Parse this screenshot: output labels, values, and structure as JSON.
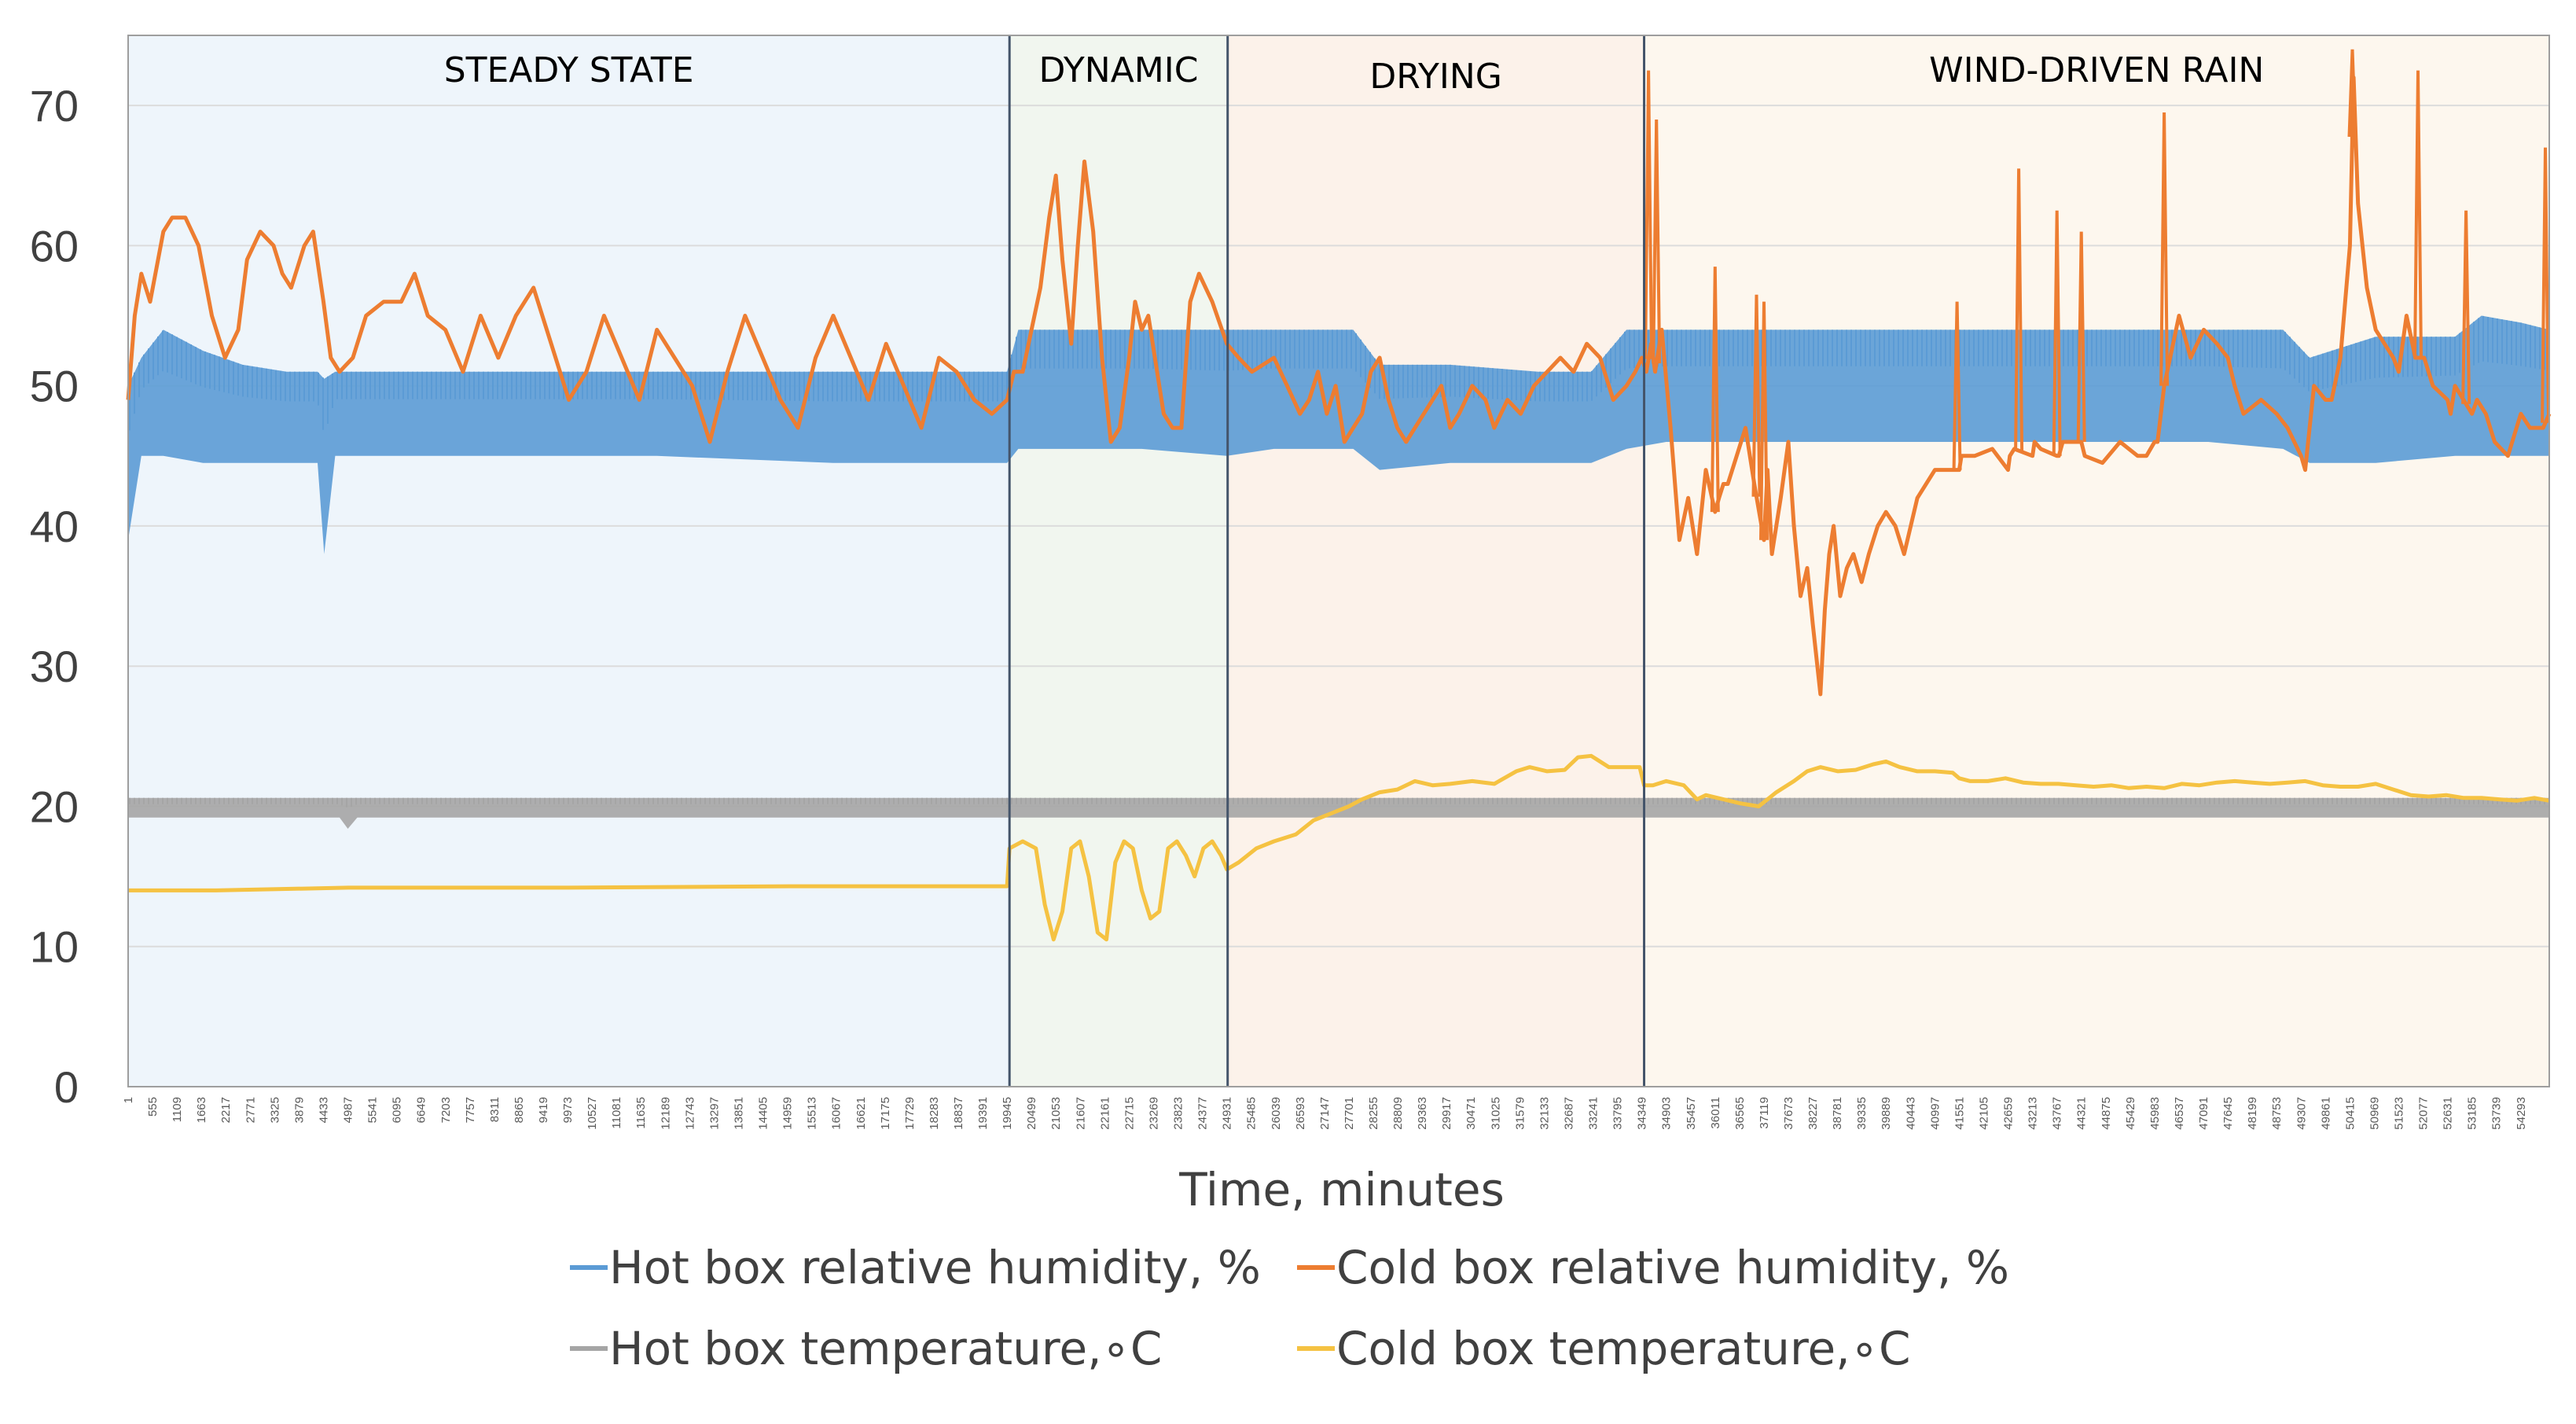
{
  "chart_data": {
    "type": "line",
    "title": "",
    "xlabel": "Time, minutes",
    "ylabel": "",
    "xlim": [
      1,
      54939
    ],
    "ylim": [
      0,
      75
    ],
    "y_ticks": [
      0,
      10,
      20,
      30,
      40,
      50,
      60,
      70
    ],
    "x_ticks": [
      1,
      555,
      1109,
      1663,
      2217,
      2771,
      3325,
      3879,
      4433,
      4987,
      5541,
      6095,
      6649,
      7203,
      7757,
      8311,
      8865,
      9419,
      9973,
      10527,
      11081,
      11635,
      12189,
      12743,
      13297,
      13851,
      14405,
      14959,
      15513,
      16067,
      16621,
      17175,
      17729,
      18283,
      18837,
      19391,
      19945,
      20499,
      21053,
      21607,
      22161,
      22715,
      23269,
      23823,
      24377,
      24931,
      25485,
      26039,
      26593,
      27147,
      27701,
      28255,
      28809,
      29363,
      29917,
      30471,
      31025,
      31579,
      32133,
      32687,
      33241,
      33795,
      34349,
      34903,
      35457,
      36011,
      36565,
      37119,
      37673,
      38227,
      38781,
      39335,
      39889,
      40443,
      40997,
      41551,
      42105,
      42659,
      43213,
      43767,
      44321,
      44875,
      45429,
      45983,
      46537,
      47091,
      47645,
      48199,
      48753,
      49307,
      49861,
      50415,
      50969,
      51523,
      52077,
      52631,
      53185,
      53739,
      54293
    ],
    "grid": "horizontal",
    "legend_position": "bottom",
    "phases": [
      {
        "label": "STEADY STATE",
        "start": 1,
        "end": 20000,
        "color": "#eef5fb"
      },
      {
        "label": "DYNAMIC",
        "start": 20000,
        "end": 24950,
        "color": "#f1f6ef"
      },
      {
        "label": "DRYING",
        "start": 24950,
        "end": 34400,
        "color": "#fcf2ea"
      },
      {
        "label": "WIND-DRIVEN RAIN",
        "start": 34400,
        "end": 54939,
        "color": "#fdf7ee"
      }
    ],
    "series": [
      {
        "name": "Hot box relative humidity, %",
        "color": "#5b9bd5",
        "band": true,
        "x": [
          1,
          300,
          800,
          1700,
          2600,
          3600,
          4300,
          4450,
          4700,
          5600,
          8000,
          12000,
          16000,
          19945,
          20200,
          23000,
          24931,
          26000,
          27800,
          28400,
          30000,
          32000,
          33200,
          34000,
          34903,
          40000,
          46000,
          47200,
          48900,
          49500,
          51000,
          52800,
          53400,
          54300,
          54939
        ],
        "low": [
          39,
          45,
          45,
          44.5,
          44.5,
          44.5,
          44.5,
          38,
          45,
          45,
          45,
          45,
          44.5,
          44.5,
          45.5,
          45.5,
          45,
          45.5,
          45.5,
          44,
          44.5,
          44.5,
          44.5,
          45.5,
          46,
          46,
          46,
          46,
          45.5,
          44.5,
          44.5,
          45,
          45,
          45,
          45
        ],
        "high": [
          50,
          52,
          54,
          52.5,
          51.5,
          51,
          51,
          50.5,
          51,
          51,
          51,
          51,
          51,
          51,
          54,
          54,
          54,
          54,
          54,
          51.5,
          51.5,
          51,
          51,
          54,
          54,
          54,
          54,
          54,
          54,
          52,
          53.5,
          53.5,
          55,
          54.5,
          54
        ]
      },
      {
        "name": "Cold box relative humidity, %",
        "color": "#ed7d31",
        "band": false,
        "x": [
          1,
          150,
          300,
          500,
          800,
          1000,
          1300,
          1600,
          1900,
          2200,
          2500,
          2700,
          3000,
          3300,
          3500,
          3700,
          4000,
          4200,
          4433,
          4600,
          4800,
          5100,
          5400,
          5800,
          6200,
          6500,
          6800,
          7200,
          7600,
          8000,
          8400,
          8800,
          9200,
          9600,
          10000,
          10400,
          10800,
          11200,
          11600,
          12000,
          12400,
          12800,
          13200,
          13600,
          14000,
          14400,
          14800,
          15200,
          15600,
          16000,
          16400,
          16800,
          17200,
          17600,
          18000,
          18400,
          18800,
          19200,
          19600,
          19945,
          20100,
          20300,
          20500,
          20700,
          20900,
          21053,
          21200,
          21400,
          21550,
          21700,
          21900,
          22100,
          22300,
          22500,
          22715,
          22850,
          23000,
          23150,
          23300,
          23500,
          23700,
          23900,
          24100,
          24300,
          24450,
          24600,
          24931,
          25200,
          25500,
          26000,
          26300,
          26593,
          26800,
          27000,
          27200,
          27400,
          27600,
          27800,
          28000,
          28200,
          28400,
          28600,
          28800,
          29000,
          29200,
          29400,
          29600,
          29800,
          30000,
          30200,
          30500,
          30800,
          31000,
          31300,
          31600,
          31900,
          32200,
          32500,
          32800,
          33100,
          33400,
          33700,
          34000,
          34200,
          34349,
          34450,
          34560,
          34650,
          34800,
          35000,
          35200,
          35400,
          35600,
          35800,
          36011,
          36100,
          36200,
          36300,
          36500,
          36700,
          36900,
          37119,
          37200,
          37300,
          37400,
          37500,
          37673,
          37800,
          37950,
          38100,
          38227,
          38400,
          38500,
          38600,
          38700,
          38850,
          39000,
          39150,
          39335,
          39500,
          39700,
          39889,
          40100,
          40300,
          40600,
          41000,
          41551,
          41600,
          41700,
          41900,
          42300,
          42659,
          42700,
          42800,
          43213,
          43260,
          43400,
          43767,
          43810,
          43900,
          44321,
          44400,
          44800,
          45200,
          45600,
          45800,
          45983,
          46050,
          46200,
          46537,
          46800,
          47100,
          47400,
          47645,
          47800,
          48000,
          48400,
          48753,
          49000,
          49307,
          49400,
          49600,
          49861,
          50000,
          50200,
          50415,
          50500,
          50600,
          50800,
          51000,
          51200,
          51400,
          51523,
          51700,
          51900,
          52100,
          52300,
          52631,
          52700,
          52800,
          53185,
          53300,
          53500,
          53700,
          54000,
          54293,
          54500,
          54800,
          54939
        ],
        "y": [
          49,
          55,
          58,
          56,
          61,
          62,
          62,
          60,
          55,
          52,
          54,
          59,
          61,
          60,
          58,
          57,
          60,
          61,
          56,
          52,
          51,
          52,
          55,
          56,
          56,
          58,
          55,
          54,
          51,
          55,
          52,
          55,
          57,
          53,
          49,
          51,
          55,
          52,
          49,
          54,
          52,
          50,
          46,
          51,
          55,
          52,
          49,
          47,
          52,
          55,
          52,
          49,
          53,
          50,
          47,
          52,
          51,
          49,
          48,
          49,
          51,
          51,
          54,
          57,
          62,
          65,
          59,
          53,
          60,
          66,
          61,
          52,
          46,
          47,
          52,
          56,
          54,
          55,
          52,
          48,
          47,
          47,
          56,
          58,
          57,
          56,
          53,
          52,
          51,
          52,
          50,
          48,
          49,
          51,
          48,
          50,
          46,
          47,
          48,
          51,
          52,
          49,
          47,
          46,
          47,
          48,
          49,
          50,
          47,
          48,
          50,
          49,
          47,
          49,
          48,
          50,
          51,
          52,
          51,
          53,
          52,
          49,
          50,
          51,
          52,
          51,
          53,
          51,
          54,
          47,
          39,
          42,
          38,
          44,
          41,
          42,
          43,
          43,
          45,
          47,
          43,
          39,
          44,
          38,
          40,
          42,
          46,
          40,
          35,
          37,
          33,
          28,
          34,
          38,
          40,
          35,
          37,
          38,
          36,
          38,
          40,
          41,
          40,
          38,
          42,
          44,
          44,
          45,
          45,
          45,
          45.5,
          44,
          45,
          45.5,
          45,
          46,
          45.5,
          45,
          45,
          46,
          46,
          45,
          44.5,
          46,
          45,
          45,
          46,
          46,
          50,
          55,
          52,
          54,
          53,
          52,
          50,
          48,
          49,
          48,
          47,
          45,
          44,
          50,
          49,
          49,
          52,
          60,
          72,
          63,
          57,
          54,
          53,
          52,
          51,
          55,
          52,
          52,
          50,
          49,
          48,
          50,
          48,
          49,
          48,
          46,
          45,
          48,
          47,
          47,
          48
        ],
        "spikes": [
          {
            "x": 34500,
            "y": 72.5
          },
          {
            "x": 34680,
            "y": 69
          },
          {
            "x": 36011,
            "y": 58.5
          },
          {
            "x": 36950,
            "y": 56.5
          },
          {
            "x": 37119,
            "y": 56
          },
          {
            "x": 41500,
            "y": 56
          },
          {
            "x": 42900,
            "y": 65.5
          },
          {
            "x": 43767,
            "y": 62.5
          },
          {
            "x": 44321,
            "y": 61
          },
          {
            "x": 46200,
            "y": 69.5
          },
          {
            "x": 50470,
            "y": 74
          },
          {
            "x": 51960,
            "y": 72.5
          },
          {
            "x": 53050,
            "y": 62.5
          },
          {
            "x": 54850,
            "y": 67
          }
        ]
      },
      {
        "name": "Hot box temperature,∘C",
        "color": "#a5a5a5",
        "band": true,
        "x": [
          1,
          4800,
          4987,
          5200,
          54939
        ],
        "low": [
          19.2,
          19.2,
          18.4,
          19.2,
          19.2
        ],
        "high": [
          20.6,
          20.6,
          20.6,
          20.6,
          20.6
        ]
      },
      {
        "name": "Cold box temperature,∘C",
        "color": "#f5c242",
        "band": false,
        "x": [
          1,
          2000,
          5000,
          10000,
          15000,
          19945,
          20000,
          20300,
          20600,
          20800,
          21000,
          21200,
          21400,
          21600,
          21800,
          22000,
          22200,
          22400,
          22600,
          22800,
          23000,
          23200,
          23400,
          23600,
          23800,
          24000,
          24200,
          24400,
          24600,
          24800,
          24931,
          25200,
          25600,
          26000,
          26500,
          26900,
          27300,
          27700,
          28000,
          28400,
          28800,
          29200,
          29600,
          30000,
          30500,
          31000,
          31500,
          31800,
          32200,
          32600,
          32900,
          33200,
          33600,
          34000,
          34300,
          34400,
          34600,
          34903,
          35300,
          35600,
          35800,
          36200,
          36600,
          37000,
          37400,
          37800,
          38100,
          38400,
          38800,
          39200,
          39600,
          39889,
          40200,
          40600,
          41000,
          41400,
          41551,
          41800,
          42200,
          42600,
          43000,
          43400,
          43800,
          44200,
          44600,
          45000,
          45400,
          45800,
          46200,
          46600,
          47000,
          47400,
          47800,
          48200,
          48600,
          49000,
          49400,
          49800,
          50200,
          50600,
          51000,
          51400,
          51800,
          52200,
          52600,
          53000,
          53400,
          53800,
          54200,
          54600,
          54939
        ],
        "y": [
          14,
          14,
          14.2,
          14.2,
          14.3,
          14.3,
          17,
          17.5,
          17,
          13,
          10.5,
          12.5,
          17,
          17.5,
          15,
          11,
          10.5,
          16,
          17.5,
          17,
          14,
          12,
          12.5,
          17,
          17.5,
          16.5,
          15,
          17,
          17.5,
          16.5,
          15.5,
          16,
          17,
          17.5,
          18,
          19,
          19.5,
          20,
          20.5,
          21,
          21.2,
          21.8,
          21.5,
          21.6,
          21.8,
          21.6,
          22.5,
          22.8,
          22.5,
          22.6,
          23.5,
          23.6,
          22.8,
          22.8,
          22.8,
          21.5,
          21.5,
          21.8,
          21.5,
          20.5,
          20.8,
          20.5,
          20.2,
          20,
          21,
          21.8,
          22.5,
          22.8,
          22.5,
          22.6,
          23,
          23.2,
          22.8,
          22.5,
          22.5,
          22.4,
          22,
          21.8,
          21.8,
          22,
          21.7,
          21.6,
          21.6,
          21.5,
          21.4,
          21.5,
          21.3,
          21.4,
          21.3,
          21.6,
          21.5,
          21.7,
          21.8,
          21.7,
          21.6,
          21.7,
          21.8,
          21.5,
          21.4,
          21.4,
          21.6,
          21.2,
          20.8,
          20.7,
          20.8,
          20.6,
          20.6,
          20.5,
          20.4,
          20.6,
          20.4
        ]
      }
    ]
  }
}
